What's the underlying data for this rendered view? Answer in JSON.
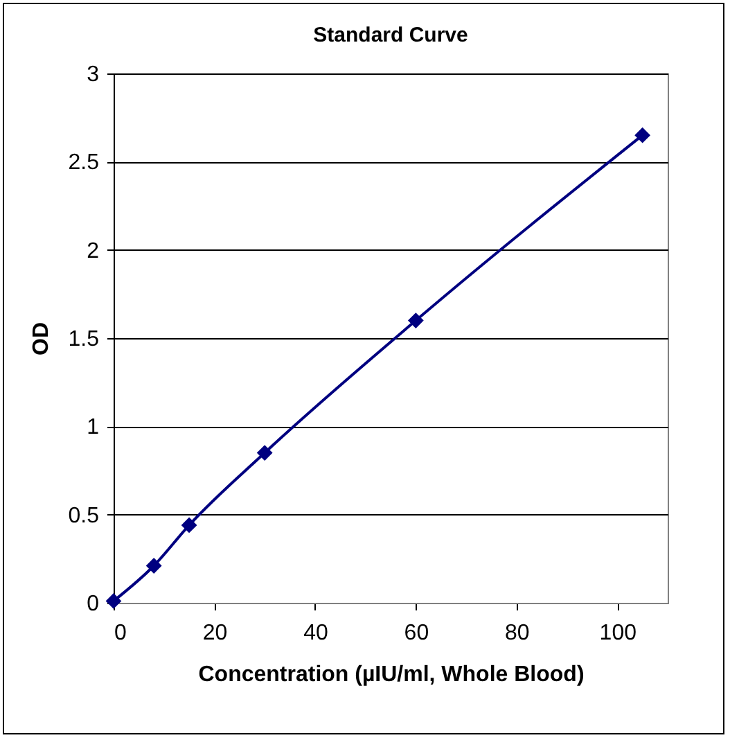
{
  "chart_data": {
    "type": "line",
    "title": "Standard Curve",
    "xlabel": "Concentration (µIU/ml, Whole Blood)",
    "ylabel": "OD",
    "x": [
      0,
      8,
      15,
      30,
      60,
      105
    ],
    "series": [
      {
        "color": "#000080",
        "values": [
          0.01,
          0.21,
          0.44,
          0.85,
          1.6,
          2.65
        ]
      }
    ],
    "xlim": [
      0,
      110
    ],
    "xticks": [
      0,
      20,
      40,
      60,
      80,
      100
    ],
    "ylim": [
      0,
      3
    ],
    "yticks": [
      0,
      0.5,
      1,
      1.5,
      2,
      2.5,
      3
    ],
    "grid": "y",
    "marker": "diamond",
    "line_style": "solid",
    "legend": false
  }
}
